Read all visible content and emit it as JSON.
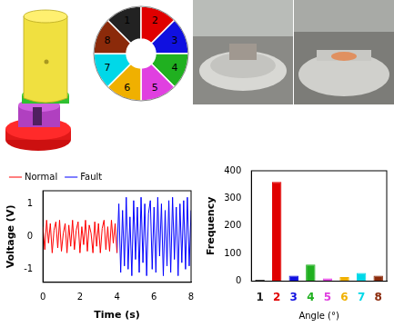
{
  "chart_data": [
    {
      "type": "line",
      "xlabel": "Time (s)",
      "ylabel": "Voltage (V)",
      "xlim": [
        0,
        8
      ],
      "xticks": [
        0,
        2,
        4,
        6,
        8
      ],
      "ylim": [
        -1.4,
        1.4
      ],
      "yticks": [
        -1,
        0,
        1
      ],
      "grid": false,
      "legend": "upper left",
      "series": [
        {
          "name": "Normal",
          "color": "#ff0000",
          "x": [
            0,
            0.1,
            0.2,
            0.3,
            0.4,
            0.5,
            0.6,
            0.7,
            0.8,
            0.9,
            1.0,
            1.1,
            1.2,
            1.3,
            1.4,
            1.5,
            1.6,
            1.7,
            1.8,
            1.9,
            2.0,
            2.1,
            2.2,
            2.3,
            2.4,
            2.5,
            2.6,
            2.7,
            2.8,
            2.9,
            3.0,
            3.1,
            3.2,
            3.3,
            3.4,
            3.5,
            3.6,
            3.7,
            3.8,
            3.9,
            4.0
          ],
          "values": [
            0.3,
            -0.4,
            0.5,
            -0.2,
            0.4,
            -0.5,
            0.2,
            0.45,
            -0.35,
            0.5,
            -0.45,
            0.1,
            0.4,
            -0.5,
            0.35,
            -0.3,
            0.5,
            -0.4,
            0.2,
            0.45,
            -0.5,
            0.3,
            -0.25,
            0.5,
            -0.45,
            0.35,
            0.1,
            -0.5,
            0.45,
            -0.3,
            0.4,
            -0.5,
            0.25,
            0.5,
            -0.4,
            0.3,
            -0.45,
            0.5,
            -0.2,
            0.4,
            -0.5
          ]
        },
        {
          "name": "Fault",
          "color": "#0000ff",
          "x": [
            4.0,
            4.1,
            4.2,
            4.3,
            4.4,
            4.5,
            4.6,
            4.7,
            4.8,
            4.9,
            5.0,
            5.1,
            5.2,
            5.3,
            5.4,
            5.5,
            5.6,
            5.7,
            5.8,
            5.9,
            6.0,
            6.1,
            6.2,
            6.3,
            6.4,
            6.5,
            6.6,
            6.7,
            6.8,
            6.9,
            7.0,
            7.1,
            7.2,
            7.3,
            7.4,
            7.5,
            7.6,
            7.7,
            7.8,
            7.9,
            8.0
          ],
          "values": [
            -0.5,
            1.0,
            -1.1,
            0.8,
            -0.9,
            1.2,
            -1.0,
            0.6,
            -1.2,
            1.1,
            -0.7,
            0.9,
            -1.1,
            1.2,
            -0.8,
            1.0,
            -1.2,
            0.7,
            1.1,
            -1.0,
            0.9,
            -1.1,
            1.2,
            -0.6,
            1.0,
            -1.2,
            0.8,
            -0.9,
            1.1,
            -1.1,
            1.2,
            -0.7,
            0.9,
            -1.2,
            1.0,
            -0.8,
            1.1,
            -1.0,
            1.2,
            -0.9,
            0.8
          ]
        }
      ]
    },
    {
      "type": "bar",
      "xlabel": "Angle (°)",
      "ylabel": "Frequency",
      "categories": [
        "1",
        "2",
        "3",
        "4",
        "5",
        "6",
        "7",
        "8"
      ],
      "values": [
        5,
        360,
        20,
        60,
        10,
        15,
        30,
        20
      ],
      "colors": [
        "#222222",
        "#e00000",
        "#1010e0",
        "#20b020",
        "#e040e0",
        "#f0b000",
        "#00d8e8",
        "#8b2a0a"
      ],
      "ylim": [
        0,
        400
      ],
      "yticks": [
        0,
        100,
        200,
        300,
        400
      ],
      "grid": false
    }
  ],
  "diagram": {
    "ring": {
      "sectors": [
        {
          "label": "1",
          "color": "#222222"
        },
        {
          "label": "2",
          "color": "#e00000"
        },
        {
          "label": "3",
          "color": "#1010e0"
        },
        {
          "label": "4",
          "color": "#20b020"
        },
        {
          "label": "5",
          "color": "#e040e0"
        },
        {
          "label": "6",
          "color": "#f0b000"
        },
        {
          "label": "7",
          "color": "#00d8e8"
        },
        {
          "label": "8",
          "color": "#8b2a0a"
        }
      ]
    }
  }
}
